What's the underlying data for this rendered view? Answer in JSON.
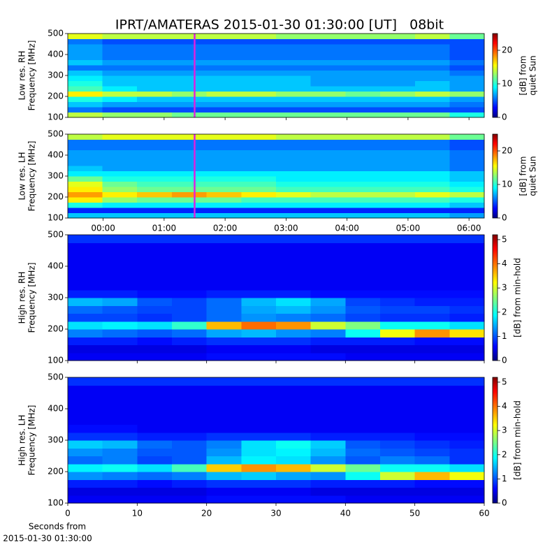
{
  "chart_data": [
    {
      "type": "heatmap",
      "title": "IPRT/AMATERAS 2015-01-30 01:30:00 [UT]   08bit",
      "ylabel": [
        "Low res. RH",
        "Frequency [MHz]"
      ],
      "colorbar_label": [
        "[dB] from",
        "quiet Sun"
      ],
      "colormap": "jet",
      "x": [
        -0.3,
        0.27,
        0.84,
        1.41,
        1.98,
        2.55,
        3.12,
        3.69,
        4.26,
        4.83,
        5.4,
        5.97
      ],
      "y": [
        112.5,
        137.5,
        162.5,
        187.5,
        212.5,
        237.5,
        262.5,
        287.5,
        312.5,
        337.5,
        362.5,
        387.5,
        412.5,
        437.5,
        462.5,
        487.5
      ],
      "z": [
        [
          14,
          13,
          13,
          12,
          12,
          12,
          12,
          12,
          12,
          12,
          12,
          10
        ],
        [
          6,
          5,
          5,
          5,
          5,
          5,
          5,
          5,
          5,
          5,
          5,
          5
        ],
        [
          8,
          7,
          7,
          7,
          7,
          7,
          7,
          7,
          7,
          7,
          7,
          6
        ],
        [
          10,
          9,
          8,
          8,
          8,
          8,
          8,
          8,
          8,
          8,
          8,
          7
        ],
        [
          16,
          14,
          14,
          13,
          14,
          14,
          13,
          13,
          12,
          13,
          14,
          13
        ],
        [
          11,
          9,
          8,
          8,
          8,
          8,
          8,
          8,
          8,
          8,
          8,
          7
        ],
        [
          10,
          8,
          8,
          8,
          8,
          8,
          8,
          7,
          7,
          7,
          8,
          7
        ],
        [
          9,
          8,
          8,
          8,
          8,
          8,
          8,
          7,
          7,
          7,
          7,
          7
        ],
        [
          8,
          7,
          7,
          7,
          7,
          7,
          7,
          7,
          7,
          7,
          7,
          6
        ],
        [
          6,
          6,
          6,
          6,
          6,
          6,
          6,
          6,
          6,
          6,
          6,
          5
        ],
        [
          8,
          7,
          7,
          7,
          7,
          7,
          7,
          7,
          7,
          7,
          7,
          6
        ],
        [
          7,
          6,
          6,
          6,
          6,
          6,
          6,
          6,
          6,
          6,
          6,
          5
        ],
        [
          7,
          6,
          6,
          6,
          6,
          6,
          6,
          6,
          6,
          6,
          6,
          5
        ],
        [
          7,
          6,
          6,
          6,
          6,
          6,
          6,
          6,
          6,
          6,
          6,
          5
        ],
        [
          6,
          5,
          5,
          5,
          5,
          5,
          5,
          5,
          5,
          5,
          5,
          5
        ],
        [
          15,
          14,
          14,
          14,
          14,
          14,
          13,
          13,
          13,
          13,
          14,
          12
        ]
      ],
      "xlim": [
        -0.58,
        6.25
      ],
      "ylim": [
        100,
        500
      ],
      "yticks": [
        100,
        200,
        300,
        400,
        500
      ],
      "clim": [
        0,
        25
      ],
      "cticks": [
        0,
        10,
        20
      ],
      "vline": {
        "x": 1.5,
        "color": "#e020e0"
      }
    },
    {
      "type": "heatmap",
      "ylabel": [
        "Low res. LH",
        "Frequency [MHz]"
      ],
      "colorbar_label": [
        "[dB] from",
        "quiet Sun"
      ],
      "colormap": "jet",
      "x": [
        -0.3,
        0.27,
        0.84,
        1.41,
        1.98,
        2.55,
        3.12,
        3.69,
        4.26,
        4.83,
        5.4,
        5.97
      ],
      "y": [
        112.5,
        137.5,
        162.5,
        187.5,
        212.5,
        237.5,
        262.5,
        287.5,
        312.5,
        337.5,
        362.5,
        387.5,
        412.5,
        437.5,
        462.5,
        487.5
      ],
      "z": [
        [
          8,
          8,
          8,
          8,
          8,
          8,
          8,
          8,
          8,
          8,
          8,
          7
        ],
        [
          4,
          4,
          4,
          4,
          4,
          4,
          4,
          4,
          4,
          4,
          4,
          4
        ],
        [
          10,
          9,
          9,
          9,
          9,
          9,
          9,
          9,
          9,
          9,
          9,
          8
        ],
        [
          16,
          13,
          12,
          12,
          12,
          11,
          11,
          11,
          11,
          11,
          11,
          10
        ],
        [
          18,
          16,
          17,
          18,
          17,
          16,
          15,
          14,
          14,
          14,
          15,
          14
        ],
        [
          16,
          13,
          12,
          12,
          12,
          12,
          11,
          11,
          11,
          11,
          11,
          10
        ],
        [
          15,
          12,
          11,
          11,
          11,
          11,
          10,
          10,
          10,
          10,
          10,
          9
        ],
        [
          12,
          10,
          10,
          10,
          10,
          10,
          9,
          9,
          9,
          9,
          9,
          8
        ],
        [
          9,
          9,
          9,
          9,
          9,
          9,
          9,
          9,
          9,
          9,
          9,
          8
        ],
        [
          8,
          7,
          7,
          7,
          7,
          7,
          7,
          7,
          7,
          7,
          7,
          6
        ],
        [
          7,
          7,
          7,
          7,
          7,
          7,
          7,
          7,
          7,
          7,
          7,
          6
        ],
        [
          7,
          7,
          7,
          7,
          7,
          7,
          7,
          7,
          7,
          7,
          7,
          6
        ],
        [
          7,
          7,
          7,
          7,
          7,
          7,
          7,
          7,
          7,
          7,
          7,
          6
        ],
        [
          6,
          6,
          6,
          6,
          6,
          6,
          6,
          6,
          6,
          6,
          6,
          5
        ],
        [
          6,
          6,
          6,
          6,
          6,
          6,
          6,
          6,
          6,
          6,
          6,
          5
        ],
        [
          14,
          15,
          15,
          15,
          15,
          15,
          14,
          14,
          14,
          14,
          14,
          12
        ]
      ],
      "xlim": [
        -0.58,
        6.25
      ],
      "ylim": [
        100,
        500
      ],
      "yticks": [
        100,
        200,
        300,
        400,
        500
      ],
      "xticks": [
        {
          "value": 0,
          "label": "00:00"
        },
        {
          "value": 1,
          "label": "01:00"
        },
        {
          "value": 2,
          "label": "02:00"
        },
        {
          "value": 3,
          "label": "03:00"
        },
        {
          "value": 4,
          "label": "04:00"
        },
        {
          "value": 5,
          "label": "05:00"
        },
        {
          "value": 6,
          "label": "06:00"
        }
      ],
      "clim": [
        0,
        25
      ],
      "cticks": [
        0,
        10,
        20
      ],
      "vline": {
        "x": 1.5,
        "color": "#e020e0"
      }
    },
    {
      "type": "heatmap",
      "ylabel": [
        "High res. RH",
        "Frequency [MHz]"
      ],
      "colorbar_label": [
        "[dB] from min-hold"
      ],
      "colormap": "jet",
      "x": [
        2.5,
        7.5,
        12.5,
        17.5,
        22.5,
        27.5,
        32.5,
        37.5,
        42.5,
        47.5,
        52.5,
        57.5
      ],
      "y": [
        112.5,
        137.5,
        162.5,
        187.5,
        212.5,
        237.5,
        262.5,
        287.5,
        312.5,
        337.5,
        362.5,
        387.5,
        412.5,
        437.5,
        462.5,
        487.5
      ],
      "z": [
        [
          0.6,
          0.6,
          0.6,
          0.6,
          0.7,
          0.7,
          0.7,
          0.7,
          0.6,
          0.6,
          0.6,
          0.6
        ],
        [
          0.5,
          0.5,
          0.5,
          0.5,
          0.6,
          0.6,
          0.6,
          0.5,
          0.5,
          0.5,
          0.5,
          0.5
        ],
        [
          0.8,
          0.8,
          0.7,
          0.8,
          0.9,
          0.9,
          0.9,
          0.8,
          0.8,
          0.8,
          0.7,
          0.7
        ],
        [
          1.3,
          1.2,
          1.1,
          1.2,
          1.5,
          1.6,
          1.4,
          1.3,
          2.0,
          3.2,
          3.8,
          3.4
        ],
        [
          1.8,
          1.9,
          1.8,
          2.2,
          3.6,
          4.0,
          3.8,
          3.0,
          2.6,
          2.0,
          2.0,
          1.8
        ],
        [
          1.0,
          1.0,
          0.9,
          1.0,
          1.2,
          1.4,
          1.3,
          1.2,
          1.0,
          0.9,
          0.9,
          0.8
        ],
        [
          1.2,
          1.1,
          1.0,
          1.0,
          1.2,
          1.5,
          1.6,
          1.4,
          1.1,
          1.0,
          1.0,
          0.9
        ],
        [
          1.6,
          1.5,
          1.1,
          1.0,
          1.2,
          1.6,
          1.8,
          1.5,
          1.0,
          0.9,
          0.8,
          0.8
        ],
        [
          0.8,
          0.8,
          0.7,
          0.7,
          0.8,
          0.8,
          0.8,
          0.7,
          0.7,
          0.7,
          0.7,
          0.7
        ],
        [
          0.6,
          0.6,
          0.6,
          0.6,
          0.6,
          0.6,
          0.6,
          0.6,
          0.6,
          0.6,
          0.6,
          0.6
        ],
        [
          0.6,
          0.6,
          0.6,
          0.6,
          0.6,
          0.6,
          0.6,
          0.6,
          0.6,
          0.6,
          0.6,
          0.6
        ],
        [
          0.6,
          0.6,
          0.6,
          0.6,
          0.6,
          0.6,
          0.6,
          0.6,
          0.6,
          0.6,
          0.6,
          0.6
        ],
        [
          0.6,
          0.6,
          0.6,
          0.6,
          0.6,
          0.6,
          0.6,
          0.6,
          0.6,
          0.6,
          0.6,
          0.6
        ],
        [
          0.6,
          0.6,
          0.6,
          0.6,
          0.6,
          0.6,
          0.6,
          0.6,
          0.6,
          0.6,
          0.6,
          0.6
        ],
        [
          0.6,
          0.6,
          0.6,
          0.6,
          0.6,
          0.6,
          0.6,
          0.6,
          0.6,
          0.6,
          0.6,
          0.6
        ],
        [
          0.9,
          0.9,
          0.9,
          0.9,
          0.9,
          0.9,
          0.9,
          0.9,
          0.9,
          0.9,
          0.9,
          0.9
        ]
      ],
      "xlim": [
        0,
        60
      ],
      "ylim": [
        100,
        500
      ],
      "yticks": [
        100,
        200,
        300,
        400,
        500
      ],
      "clim": [
        0,
        5.2
      ],
      "cticks": [
        0,
        1,
        2,
        3,
        4,
        5
      ]
    },
    {
      "type": "heatmap",
      "ylabel": [
        "High res. LH",
        "Frequency [MHz]"
      ],
      "xlabel": [
        "Seconds from",
        "2015-01-30 01:30:00"
      ],
      "colorbar_label": [
        "[dB] from min-hold"
      ],
      "colormap": "jet",
      "x": [
        2.5,
        7.5,
        12.5,
        17.5,
        22.5,
        27.5,
        32.5,
        37.5,
        42.5,
        47.5,
        52.5,
        57.5
      ],
      "y": [
        112.5,
        137.5,
        162.5,
        187.5,
        212.5,
        237.5,
        262.5,
        287.5,
        312.5,
        337.5,
        362.5,
        387.5,
        412.5,
        437.5,
        462.5,
        487.5
      ],
      "z": [
        [
          0.6,
          0.6,
          0.6,
          0.6,
          0.7,
          0.7,
          0.7,
          0.7,
          0.6,
          0.6,
          0.6,
          0.6
        ],
        [
          0.5,
          0.5,
          0.5,
          0.5,
          0.6,
          0.6,
          0.6,
          0.5,
          0.5,
          0.5,
          0.5,
          0.5
        ],
        [
          0.8,
          0.8,
          0.7,
          0.8,
          0.9,
          0.9,
          0.9,
          0.8,
          0.8,
          0.8,
          0.7,
          0.7
        ],
        [
          1.4,
          1.3,
          1.2,
          1.3,
          1.6,
          1.7,
          1.5,
          1.4,
          2.0,
          3.0,
          3.6,
          3.2
        ],
        [
          1.9,
          2.0,
          1.8,
          2.3,
          3.5,
          3.8,
          3.6,
          3.0,
          2.5,
          2.0,
          2.0,
          1.8
        ],
        [
          1.2,
          1.3,
          1.0,
          1.1,
          1.6,
          1.9,
          1.8,
          1.4,
          1.1,
          1.3,
          1.2,
          0.9
        ],
        [
          1.4,
          1.3,
          1.1,
          1.1,
          1.4,
          1.8,
          1.9,
          1.6,
          1.2,
          1.1,
          1.0,
          0.9
        ],
        [
          1.7,
          1.6,
          1.2,
          1.1,
          1.3,
          1.8,
          2.0,
          1.7,
          1.1,
          1.0,
          0.9,
          0.8
        ],
        [
          0.9,
          0.9,
          0.8,
          0.8,
          0.9,
          0.9,
          0.9,
          0.8,
          0.8,
          0.8,
          0.7,
          0.7
        ],
        [
          0.7,
          0.7,
          0.6,
          0.6,
          0.6,
          0.6,
          0.6,
          0.6,
          0.6,
          0.6,
          0.6,
          0.6
        ],
        [
          0.6,
          0.6,
          0.6,
          0.6,
          0.6,
          0.6,
          0.6,
          0.6,
          0.6,
          0.6,
          0.6,
          0.6
        ],
        [
          0.6,
          0.6,
          0.6,
          0.6,
          0.6,
          0.6,
          0.6,
          0.6,
          0.6,
          0.6,
          0.6,
          0.6
        ],
        [
          0.6,
          0.6,
          0.6,
          0.6,
          0.6,
          0.6,
          0.6,
          0.6,
          0.6,
          0.6,
          0.6,
          0.6
        ],
        [
          0.6,
          0.6,
          0.6,
          0.6,
          0.6,
          0.6,
          0.6,
          0.6,
          0.6,
          0.6,
          0.6,
          0.6
        ],
        [
          0.6,
          0.6,
          0.6,
          0.6,
          0.6,
          0.6,
          0.6,
          0.6,
          0.6,
          0.6,
          0.6,
          0.6
        ],
        [
          0.9,
          0.9,
          0.9,
          0.9,
          0.9,
          0.9,
          0.9,
          0.9,
          0.9,
          0.9,
          0.9,
          0.9
        ]
      ],
      "xlim": [
        0,
        60
      ],
      "ylim": [
        100,
        500
      ],
      "yticks": [
        100,
        200,
        300,
        400,
        500
      ],
      "xticks": [
        0,
        10,
        20,
        30,
        40,
        50,
        60
      ],
      "clim": [
        0,
        5.2
      ],
      "cticks": [
        0,
        1,
        2,
        3,
        4,
        5
      ]
    }
  ]
}
